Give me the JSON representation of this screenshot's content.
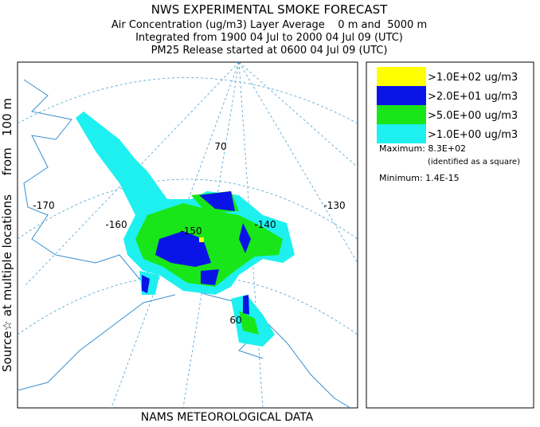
{
  "header": {
    "title": "NWS EXPERIMENTAL SMOKE FORECAST",
    "lines": [
      "Air Concentration (ug/m3) Layer Average    0 m and  5000 m",
      "Integrated from 1900 04 Jul to 2000 04 Jul 09 (UTC)",
      "PM25 Release started at 0600 04 Jul 09 (UTC)"
    ]
  },
  "side_label": "Source☆ at multiple locations     from   100 m",
  "footer": "NAMS METEOROLOGICAL DATA",
  "legend": {
    "items": [
      {
        "label": ">1.0E+02 ug/m3",
        "color": "#ffff00"
      },
      {
        "label": ">2.0E+01 ug/m3",
        "color": "#0a14e6"
      },
      {
        "label": ">5.0E+00 ug/m3",
        "color": "#19e619"
      },
      {
        "label": ">1.0E+00 ug/m3",
        "color": "#1ef0f0"
      }
    ],
    "maximum": "Maximum: 8.3E+02",
    "maximum_note": "(identified as a square)",
    "minimum": "Minimum: 1.4E-15"
  },
  "map_labels": [
    "-170",
    "-160",
    "-150",
    "-140",
    "-130",
    "70",
    "60"
  ]
}
